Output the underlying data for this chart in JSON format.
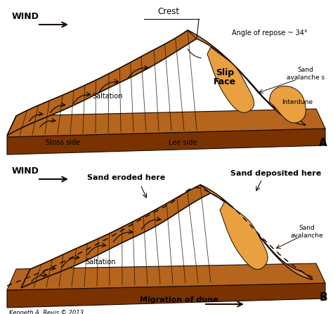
{
  "bg_color": "#ffffff",
  "sand_color": "#b5651d",
  "sand_dark": "#8B4513",
  "sand_light": "#cd853f",
  "sand_lighter": "#d4a055",
  "sand_very_light": "#e8a040",
  "line_color": "#1a0a00",
  "front_face_color": "#7a3200",
  "right_face_color": "#6b2c00",
  "text_color": "#000000",
  "title_A": "A",
  "title_B": "B",
  "label_crest": "Crest",
  "label_angle": "Angle of repose ~ 34°",
  "label_slip": "Slip",
  "label_face": "Face",
  "label_saltation_A": "Saltation",
  "label_saltation_B": "Saltation",
  "label_stoss": "Stoss side",
  "label_lee": "Lee side",
  "label_interdune": "Interdune",
  "label_sand_aval_A": "Sand\navalanche s",
  "label_wind": "WIND",
  "label_sand_eroded": "Sand eroded here",
  "label_sand_deposited": "Sand deposited here",
  "label_sand_aval_B": "Sand\navalanche",
  "label_migration": "Migration of dune",
  "label_credit": "Kenneth A. Bevis © 2013",
  "figsize": [
    4.74,
    4.47
  ],
  "dpi": 100
}
